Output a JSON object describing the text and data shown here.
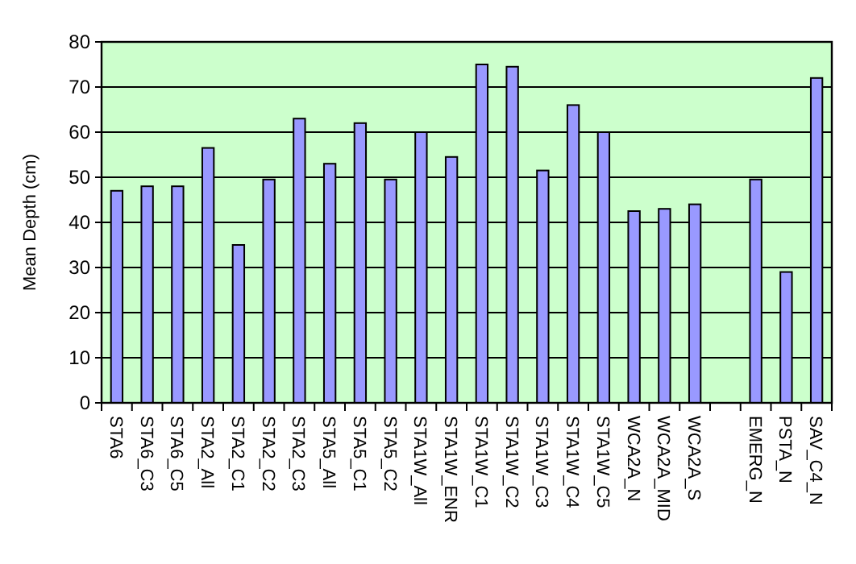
{
  "chart_data": {
    "type": "bar",
    "ylabel": "Mean Depth (cm)",
    "categories": [
      "STA6",
      "STA6_C3",
      "STA6_C5",
      "STA2_All",
      "STA2_C1",
      "STA2_C2",
      "STA2_C3",
      "STA5_All",
      "STA5_C1",
      "STA5_C2",
      "STA1W_All",
      "STA1W_ENR",
      "STA1W_C1",
      "STA1W_C2",
      "STA1W_C3",
      "STA1W_C4",
      "STA1W_C5",
      "WCA2A_N",
      "WCA2A_MID",
      "WCA2A_S",
      null,
      "EMERG_N",
      "PSTA_N",
      "SAV_C4_N"
    ],
    "values": [
      47,
      48,
      48,
      56.5,
      35,
      49.5,
      63,
      53,
      62,
      49.5,
      60,
      54.5,
      75,
      74.5,
      51.5,
      66,
      60,
      42.5,
      43,
      44,
      null,
      49.5,
      29,
      72
    ],
    "color": "#9999ff",
    "ylim": [
      0,
      80
    ],
    "yticks": [
      0,
      10,
      20,
      30,
      40,
      50,
      60,
      70,
      80
    ],
    "grid": "y"
  }
}
